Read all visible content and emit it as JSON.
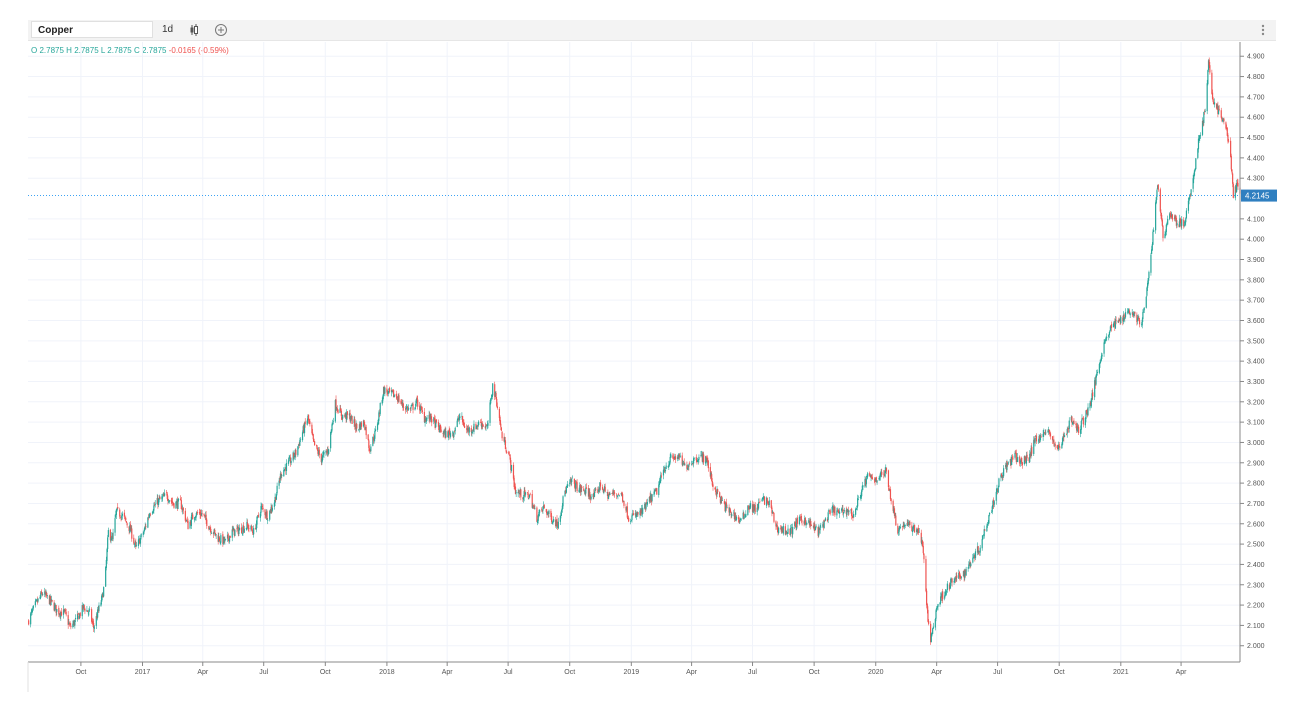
{
  "toolbar": {
    "symbol": "Copper",
    "interval": "1d",
    "candle_icon": "candlestick-icon",
    "add_icon": "plus-circle-icon",
    "menu_icon": "more-vertical-icon"
  },
  "legend": {
    "o_label": "O",
    "o_value": "2.7875",
    "h_label": "H",
    "h_value": "2.7875",
    "l_label": "L",
    "l_value": "2.7875",
    "c_label": "C",
    "c_value": "2.7875",
    "change": "-0.0165 (-0.59%)"
  },
  "colors": {
    "up": "#26a69a",
    "down": "#ef5350",
    "price_line": "#2196f3",
    "grid": "#f0f3fa"
  },
  "chart_data": {
    "type": "candlestick",
    "title": "Copper",
    "interval": "1d",
    "last_price": "4.2145",
    "ylim": [
      1.92,
      4.97
    ],
    "y_ticks": [
      "2.000",
      "2.100",
      "2.200",
      "2.300",
      "2.400",
      "2.500",
      "2.600",
      "2.700",
      "2.800",
      "2.900",
      "3.000",
      "3.100",
      "3.200",
      "3.300",
      "3.400",
      "3.500",
      "3.600",
      "3.700",
      "3.800",
      "3.900",
      "4.000",
      "4.100",
      "4.300",
      "4.400",
      "4.500",
      "4.600",
      "4.700",
      "4.800",
      "4.900"
    ],
    "x_range": [
      "2016-07-14",
      "2021-06-28"
    ],
    "x_ticks": [
      {
        "label": "Oct",
        "date": "2016-10-01"
      },
      {
        "label": "2017",
        "date": "2017-01-01"
      },
      {
        "label": "Apr",
        "date": "2017-04-01"
      },
      {
        "label": "Jul",
        "date": "2017-07-01"
      },
      {
        "label": "Oct",
        "date": "2017-10-01"
      },
      {
        "label": "2018",
        "date": "2018-01-01"
      },
      {
        "label": "Apr",
        "date": "2018-04-01"
      },
      {
        "label": "Jul",
        "date": "2018-07-01"
      },
      {
        "label": "Oct",
        "date": "2018-10-01"
      },
      {
        "label": "2019",
        "date": "2019-01-01"
      },
      {
        "label": "Apr",
        "date": "2019-04-01"
      },
      {
        "label": "Jul",
        "date": "2019-07-01"
      },
      {
        "label": "Oct",
        "date": "2019-10-01"
      },
      {
        "label": "2020",
        "date": "2020-01-01"
      },
      {
        "label": "Apr",
        "date": "2020-04-01"
      },
      {
        "label": "Jul",
        "date": "2020-07-01"
      },
      {
        "label": "Oct",
        "date": "2020-10-01"
      },
      {
        "label": "2021",
        "date": "2021-01-01"
      },
      {
        "label": "Apr",
        "date": "2021-04-01"
      }
    ],
    "close_path": [
      [
        "2016-07-14",
        2.12
      ],
      [
        "2016-07-25",
        2.2
      ],
      [
        "2016-08-05",
        2.26
      ],
      [
        "2016-08-16",
        2.22
      ],
      [
        "2016-08-27",
        2.17
      ],
      [
        "2016-09-07",
        2.16
      ],
      [
        "2016-09-15",
        2.09
      ],
      [
        "2016-09-25",
        2.13
      ],
      [
        "2016-10-05",
        2.19
      ],
      [
        "2016-10-14",
        2.16
      ],
      [
        "2016-10-20",
        2.09
      ],
      [
        "2016-10-26",
        2.16
      ],
      [
        "2016-11-02",
        2.24
      ],
      [
        "2016-11-06",
        2.32
      ],
      [
        "2016-11-11",
        2.56
      ],
      [
        "2016-11-17",
        2.52
      ],
      [
        "2016-11-23",
        2.66
      ],
      [
        "2016-12-02",
        2.64
      ],
      [
        "2016-12-14",
        2.57
      ],
      [
        "2016-12-22",
        2.48
      ],
      [
        "2017-01-03",
        2.56
      ],
      [
        "2017-01-12",
        2.66
      ],
      [
        "2017-01-24",
        2.71
      ],
      [
        "2017-02-06",
        2.74
      ],
      [
        "2017-02-16",
        2.7
      ],
      [
        "2017-02-27",
        2.7
      ],
      [
        "2017-03-10",
        2.59
      ],
      [
        "2017-03-20",
        2.65
      ],
      [
        "2017-03-31",
        2.65
      ],
      [
        "2017-04-12",
        2.58
      ],
      [
        "2017-04-24",
        2.53
      ],
      [
        "2017-05-05",
        2.51
      ],
      [
        "2017-05-15",
        2.56
      ],
      [
        "2017-05-26",
        2.57
      ],
      [
        "2017-06-06",
        2.59
      ],
      [
        "2017-06-16",
        2.56
      ],
      [
        "2017-06-27",
        2.68
      ],
      [
        "2017-07-07",
        2.64
      ],
      [
        "2017-07-17",
        2.71
      ],
      [
        "2017-07-27",
        2.85
      ],
      [
        "2017-08-08",
        2.9
      ],
      [
        "2017-08-18",
        2.95
      ],
      [
        "2017-08-28",
        3.05
      ],
      [
        "2017-09-05",
        3.12
      ],
      [
        "2017-09-14",
        2.99
      ],
      [
        "2017-09-25",
        2.92
      ],
      [
        "2017-10-05",
        2.96
      ],
      [
        "2017-10-16",
        3.19
      ],
      [
        "2017-10-26",
        3.13
      ],
      [
        "2017-11-06",
        3.13
      ],
      [
        "2017-11-17",
        3.07
      ],
      [
        "2017-11-28",
        3.1
      ],
      [
        "2017-12-06",
        2.97
      ],
      [
        "2017-12-15",
        3.05
      ],
      [
        "2017-12-27",
        3.26
      ],
      [
        "2018-01-05",
        3.24
      ],
      [
        "2018-01-15",
        3.23
      ],
      [
        "2018-01-25",
        3.18
      ],
      [
        "2018-02-05",
        3.16
      ],
      [
        "2018-02-15",
        3.2
      ],
      [
        "2018-02-26",
        3.12
      ],
      [
        "2018-03-08",
        3.12
      ],
      [
        "2018-03-19",
        3.07
      ],
      [
        "2018-03-29",
        3.04
      ],
      [
        "2018-04-10",
        3.05
      ],
      [
        "2018-04-20",
        3.13
      ],
      [
        "2018-04-30",
        3.06
      ],
      [
        "2018-05-10",
        3.07
      ],
      [
        "2018-05-21",
        3.1
      ],
      [
        "2018-05-31",
        3.07
      ],
      [
        "2018-06-08",
        3.28
      ],
      [
        "2018-06-14",
        3.2
      ],
      [
        "2018-06-22",
        3.03
      ],
      [
        "2018-07-02",
        2.94
      ],
      [
        "2018-07-12",
        2.76
      ],
      [
        "2018-07-23",
        2.74
      ],
      [
        "2018-08-02",
        2.74
      ],
      [
        "2018-08-13",
        2.63
      ],
      [
        "2018-08-23",
        2.68
      ],
      [
        "2018-09-03",
        2.63
      ],
      [
        "2018-09-13",
        2.6
      ],
      [
        "2018-09-24",
        2.76
      ],
      [
        "2018-10-04",
        2.81
      ],
      [
        "2018-10-15",
        2.77
      ],
      [
        "2018-10-25",
        2.76
      ],
      [
        "2018-11-05",
        2.73
      ],
      [
        "2018-11-16",
        2.79
      ],
      [
        "2018-11-27",
        2.74
      ],
      [
        "2018-12-07",
        2.75
      ],
      [
        "2018-12-18",
        2.74
      ],
      [
        "2018-12-28",
        2.63
      ],
      [
        "2019-01-08",
        2.64
      ],
      [
        "2019-01-18",
        2.66
      ],
      [
        "2019-01-29",
        2.72
      ],
      [
        "2019-02-08",
        2.76
      ],
      [
        "2019-02-19",
        2.87
      ],
      [
        "2019-03-01",
        2.92
      ],
      [
        "2019-03-12",
        2.93
      ],
      [
        "2019-03-22",
        2.88
      ],
      [
        "2019-04-02",
        2.91
      ],
      [
        "2019-04-12",
        2.93
      ],
      [
        "2019-04-23",
        2.92
      ],
      [
        "2019-05-03",
        2.79
      ],
      [
        "2019-05-14",
        2.72
      ],
      [
        "2019-05-24",
        2.67
      ],
      [
        "2019-06-04",
        2.64
      ],
      [
        "2019-06-14",
        2.61
      ],
      [
        "2019-06-25",
        2.69
      ],
      [
        "2019-07-05",
        2.67
      ],
      [
        "2019-07-16",
        2.72
      ],
      [
        "2019-07-26",
        2.7
      ],
      [
        "2019-08-06",
        2.58
      ],
      [
        "2019-08-16",
        2.57
      ],
      [
        "2019-08-27",
        2.56
      ],
      [
        "2019-09-06",
        2.61
      ],
      [
        "2019-09-17",
        2.62
      ],
      [
        "2019-09-27",
        2.59
      ],
      [
        "2019-10-08",
        2.56
      ],
      [
        "2019-10-18",
        2.62
      ],
      [
        "2019-10-29",
        2.67
      ],
      [
        "2019-11-08",
        2.65
      ],
      [
        "2019-11-19",
        2.67
      ],
      [
        "2019-11-29",
        2.64
      ],
      [
        "2019-12-10",
        2.76
      ],
      [
        "2019-12-20",
        2.83
      ],
      [
        "2019-12-31",
        2.82
      ],
      [
        "2020-01-10",
        2.84
      ],
      [
        "2020-01-17",
        2.86
      ],
      [
        "2020-01-24",
        2.72
      ],
      [
        "2020-02-03",
        2.57
      ],
      [
        "2020-02-13",
        2.6
      ],
      [
        "2020-02-24",
        2.58
      ],
      [
        "2020-03-05",
        2.57
      ],
      [
        "2020-03-12",
        2.47
      ],
      [
        "2020-03-19",
        2.11
      ],
      [
        "2020-03-23",
        2.03
      ],
      [
        "2020-04-02",
        2.2
      ],
      [
        "2020-04-13",
        2.27
      ],
      [
        "2020-04-23",
        2.31
      ],
      [
        "2020-05-04",
        2.34
      ],
      [
        "2020-05-14",
        2.36
      ],
      [
        "2020-05-25",
        2.44
      ],
      [
        "2020-06-04",
        2.48
      ],
      [
        "2020-06-15",
        2.61
      ],
      [
        "2020-06-25",
        2.71
      ],
      [
        "2020-07-06",
        2.84
      ],
      [
        "2020-07-16",
        2.89
      ],
      [
        "2020-07-27",
        2.93
      ],
      [
        "2020-08-06",
        2.9
      ],
      [
        "2020-08-17",
        2.93
      ],
      [
        "2020-08-27",
        3.02
      ],
      [
        "2020-09-07",
        3.04
      ],
      [
        "2020-09-17",
        3.05
      ],
      [
        "2020-09-28",
        2.96
      ],
      [
        "2020-10-08",
        3.03
      ],
      [
        "2020-10-19",
        3.11
      ],
      [
        "2020-10-29",
        3.06
      ],
      [
        "2020-11-09",
        3.13
      ],
      [
        "2020-11-19",
        3.22
      ],
      [
        "2020-11-30",
        3.4
      ],
      [
        "2020-12-10",
        3.52
      ],
      [
        "2020-12-21",
        3.58
      ],
      [
        "2020-12-31",
        3.6
      ],
      [
        "2021-01-11",
        3.65
      ],
      [
        "2021-01-21",
        3.63
      ],
      [
        "2021-02-01",
        3.58
      ],
      [
        "2021-02-11",
        3.79
      ],
      [
        "2021-02-19",
        4.06
      ],
      [
        "2021-02-25",
        4.28
      ],
      [
        "2021-03-05",
        4.01
      ],
      [
        "2021-03-15",
        4.13
      ],
      [
        "2021-03-26",
        4.08
      ],
      [
        "2021-04-06",
        4.08
      ],
      [
        "2021-04-16",
        4.23
      ],
      [
        "2021-04-27",
        4.48
      ],
      [
        "2021-05-07",
        4.64
      ],
      [
        "2021-05-12",
        4.86
      ],
      [
        "2021-05-18",
        4.7
      ],
      [
        "2021-05-28",
        4.62
      ],
      [
        "2021-06-08",
        4.54
      ],
      [
        "2021-06-14",
        4.41
      ],
      [
        "2021-06-18",
        4.21
      ],
      [
        "2021-06-25",
        4.28
      ],
      [
        "2021-06-28",
        4.21
      ]
    ]
  }
}
